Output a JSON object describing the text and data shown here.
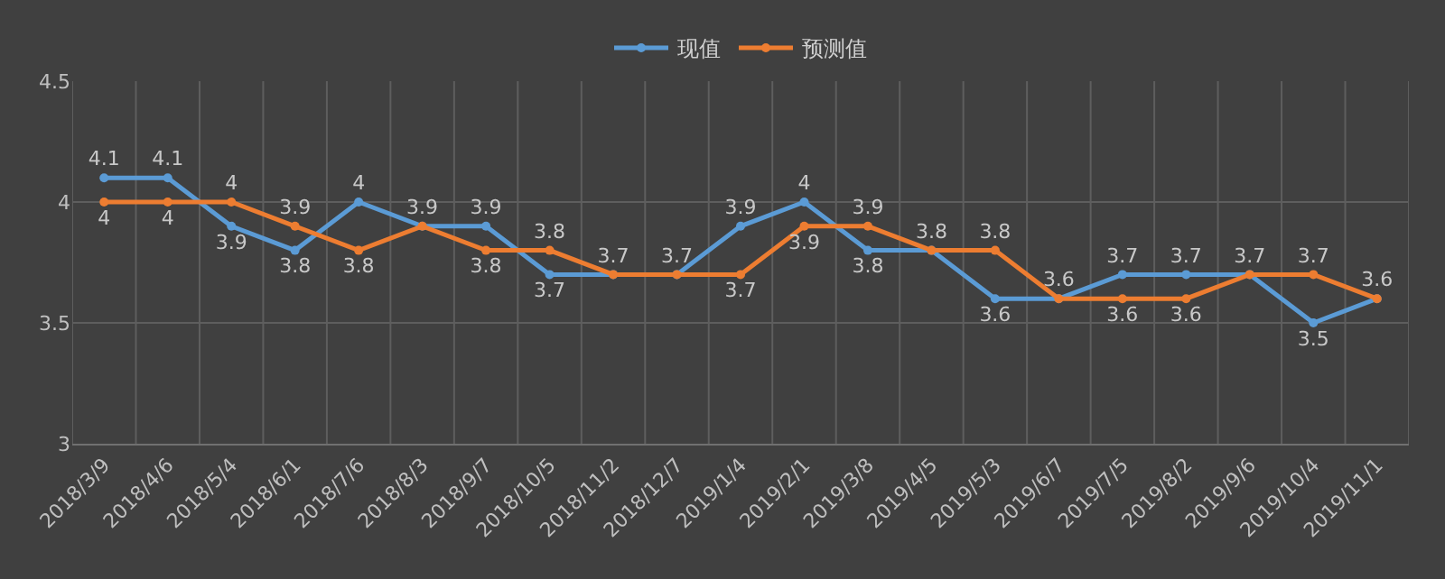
{
  "chart_data": {
    "type": "line",
    "categories": [
      "2018/3/9",
      "2018/4/6",
      "2018/5/4",
      "2018/6/1",
      "2018/7/6",
      "2018/8/3",
      "2018/9/7",
      "2018/10/5",
      "2018/11/2",
      "2018/12/7",
      "2019/1/4",
      "2019/2/1",
      "2019/3/8",
      "2019/4/5",
      "2019/5/3",
      "2019/6/7",
      "2019/7/5",
      "2019/8/2",
      "2019/9/6",
      "2019/10/4",
      "2019/11/1"
    ],
    "series": [
      {
        "name": "现值",
        "color": "#5b9bd5",
        "values": [
          4.1,
          4.1,
          3.9,
          3.8,
          4.0,
          3.9,
          3.9,
          3.7,
          3.7,
          3.7,
          3.9,
          4.0,
          3.8,
          3.8,
          3.6,
          3.6,
          3.7,
          3.7,
          3.7,
          3.5,
          3.6
        ],
        "value_labels": [
          "4.1",
          "4.1",
          "3.9",
          "3.8",
          "4",
          "3.9",
          "3.9",
          "3.7",
          "3.7",
          "3.7",
          "3.9",
          "4",
          "3.8",
          "3.8",
          "3.6",
          "3.6",
          "3.7",
          "3.7",
          "3.7",
          "3.5",
          "3.6"
        ]
      },
      {
        "name": "预测值",
        "color": "#ed7d31",
        "values": [
          4.0,
          4.0,
          4.0,
          3.9,
          3.8,
          3.9,
          3.8,
          3.8,
          3.7,
          3.7,
          3.7,
          3.9,
          3.9,
          3.8,
          3.8,
          3.6,
          3.6,
          3.6,
          3.7,
          3.7,
          3.6
        ],
        "value_labels": [
          "4",
          "4",
          "4",
          "3.9",
          "3.8",
          null,
          "3.8",
          "3.8",
          null,
          null,
          "3.7",
          "3.9",
          "3.9",
          null,
          "3.8",
          null,
          "3.6",
          "3.6",
          null,
          "3.7",
          null
        ]
      }
    ],
    "ylim": [
      3,
      4.5
    ],
    "yticks": [
      3,
      3.5,
      4,
      4.5
    ],
    "grid": true,
    "legend": "top",
    "marker": "circle",
    "line_style": "solid"
  }
}
